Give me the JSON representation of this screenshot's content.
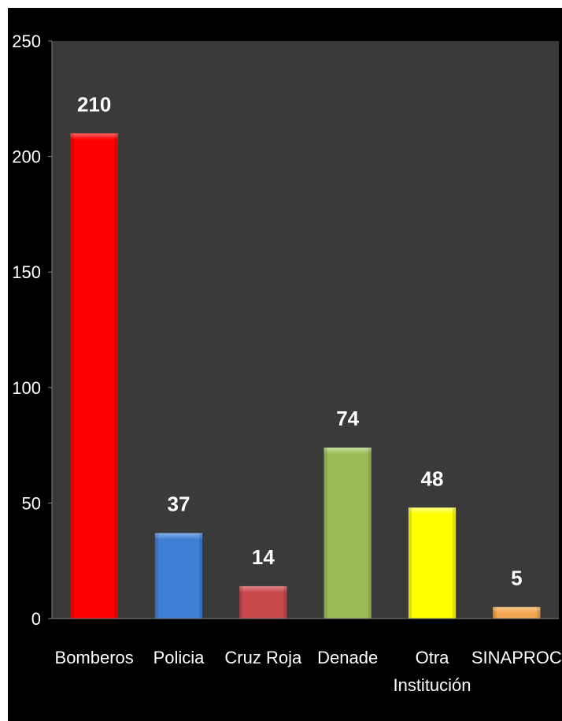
{
  "chart_data": {
    "type": "bar",
    "title": "",
    "xlabel": "",
    "ylabel": "",
    "categories": [
      "Bomberos",
      "Policia",
      "Cruz Roja",
      "Denade",
      "Otra Institución",
      "SINAPROC"
    ],
    "category_lines": [
      [
        "Bomberos"
      ],
      [
        "Policia"
      ],
      [
        "Cruz Roja"
      ],
      [
        "Denade"
      ],
      [
        "Otra",
        "Institución"
      ],
      [
        "SINAPROC"
      ]
    ],
    "values": [
      210,
      37,
      14,
      74,
      48,
      5
    ],
    "value_labels": [
      "210",
      "37",
      "14",
      "74",
      "48",
      "5"
    ],
    "ylim": [
      0,
      250
    ],
    "yticks": [
      0,
      50,
      100,
      150,
      200,
      250
    ],
    "ytick_labels": [
      "0",
      "50",
      "100",
      "150",
      "200",
      "250"
    ],
    "grid": false,
    "legend": "none",
    "colors": [
      "#ff0000",
      "#3f7fd6",
      "#c9484c",
      "#9bbb59",
      "#ffff00",
      "#f2a550"
    ],
    "colors_light": [
      "#ff7070",
      "#8fb6ea",
      "#e48c8f",
      "#cde0a6",
      "#ffff9a",
      "#f9cd99"
    ],
    "plot_background": "#3a3a3a",
    "page_background": "#000000",
    "text_color": "#ffffff"
  }
}
